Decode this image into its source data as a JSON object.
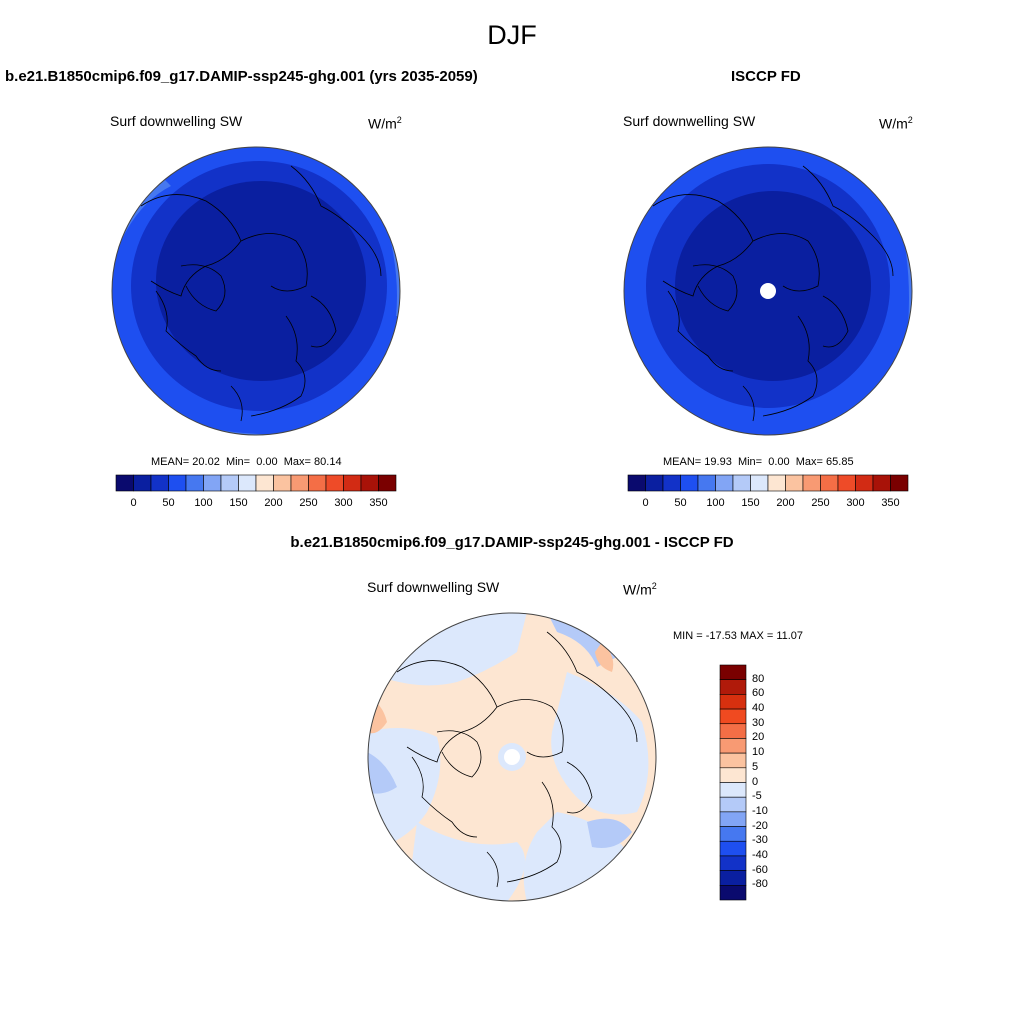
{
  "title": "DJF",
  "panels": {
    "model": {
      "title": "b.e21.B1850cmip6.f09_g17.DAMIP-ssp245-ghg.001 (yrs 2035-2059)",
      "variable": "Surf downwelling SW",
      "units": "W/m",
      "units_sup": "2",
      "stats": {
        "mean": "20.02",
        "min": "0.00",
        "max": "80.14"
      },
      "stats_labels": {
        "mean": "MEAN=",
        "min": "Min=",
        "max": "Max="
      }
    },
    "obs": {
      "title": "ISCCP FD",
      "variable": "Surf downwelling SW",
      "units": "W/m",
      "units_sup": "2",
      "stats": {
        "mean": "19.93",
        "min": "0.00",
        "max": "65.85"
      },
      "stats_labels": {
        "mean": "MEAN=",
        "min": "Min=",
        "max": "Max="
      }
    },
    "diff": {
      "title": "b.e21.B1850cmip6.f09_g17.DAMIP-ssp245-ghg.001 - ISCCP FD",
      "variable": "Surf downwelling SW",
      "units": "W/m",
      "units_sup": "2",
      "stats_text": "MIN = -17.53 MAX =  11.07",
      "stats": {
        "min": -17.53,
        "max": 11.07
      }
    }
  },
  "colorbars": {
    "absolute": {
      "labels": [
        "0",
        "50",
        "100",
        "150",
        "200",
        "250",
        "300",
        "350"
      ],
      "colors": [
        "#0a0a6e",
        "#0a1fa0",
        "#1232c8",
        "#1e4ff0",
        "#4678f0",
        "#82a5f5",
        "#b4caf8",
        "#dce8fc",
        "#fde6d2",
        "#fbc3a0",
        "#f89a73",
        "#f46e46",
        "#ee4b28",
        "#d22b14",
        "#a81208",
        "#7a0000"
      ]
    },
    "difference": {
      "labels": [
        "80",
        "60",
        "40",
        "30",
        "20",
        "10",
        "5",
        "0",
        "-5",
        "-10",
        "-20",
        "-30",
        "-40",
        "-60",
        "-80"
      ],
      "colors": [
        "#7a0000",
        "#b01a0a",
        "#d7300f",
        "#f04a20",
        "#f46e46",
        "#f89a73",
        "#fbc3a0",
        "#fde6d2",
        "#dce8fc",
        "#b4caf8",
        "#82a5f5",
        "#4678f0",
        "#1e4ff0",
        "#1232c8",
        "#0a1fa0",
        "#0a0a6e"
      ]
    }
  },
  "map_colors": {
    "abs_outer": "#1e4ff0",
    "abs_mid": "#1232c8",
    "abs_inner": "#0a1fa0",
    "abs_ring": "#4678f0",
    "diff_pos": "#fde6d2",
    "diff_neg": "#dce8fc",
    "diff_neg2": "#b4caf8",
    "diff_pos2": "#fbc3a0"
  }
}
